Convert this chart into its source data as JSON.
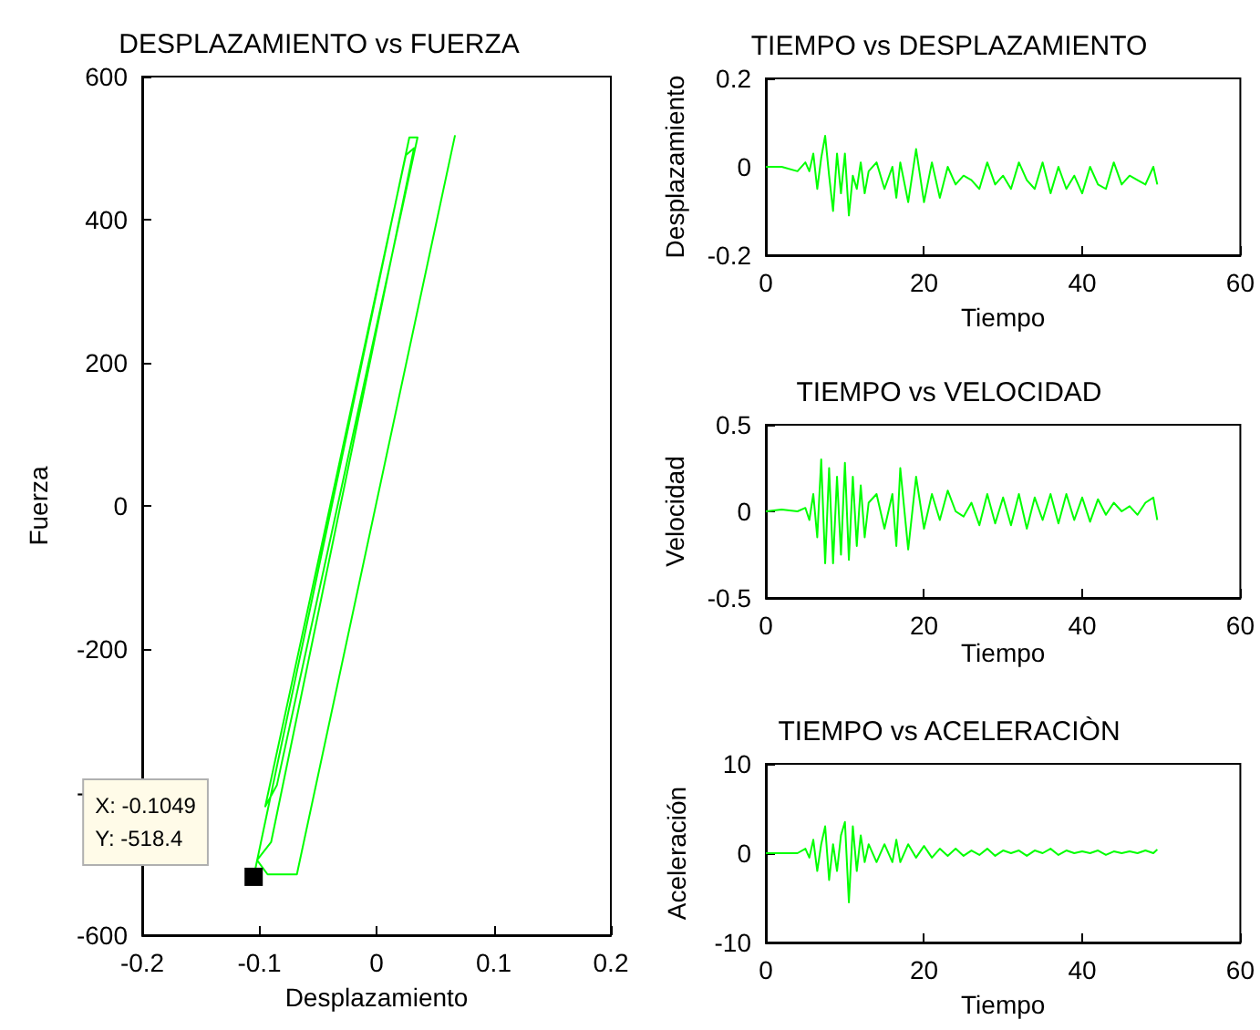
{
  "chart_data": [
    {
      "type": "line",
      "title": "DESPLAZAMIENTO vs FUERZA",
      "xlabel": "Desplazamiento",
      "ylabel": "Fuerza",
      "color": "#00ff00",
      "x": [
        -0.1049,
        0.028,
        0.035,
        -0.085,
        -0.095,
        0.025,
        0.032,
        -0.09,
        -0.102,
        -0.093,
        -0.068,
        0.067
      ],
      "values": [
        -518.4,
        515,
        515,
        -390,
        -420,
        490,
        500,
        -470,
        -495,
        -515,
        -515,
        518
      ],
      "xlim": [
        -0.2,
        0.2
      ],
      "xticks": [
        -0.2,
        -0.1,
        0,
        0.1,
        0.2
      ],
      "ylim": [
        -600,
        600
      ],
      "yticks": [
        -600,
        -400,
        -200,
        0,
        200,
        400,
        600
      ],
      "annotations": [
        {
          "text": "X: -0.1049\nY: -518.4",
          "x": -0.1049,
          "y": -518.4
        }
      ]
    },
    {
      "type": "line",
      "title": "TIEMPO vs DESPLAZAMIENTO",
      "xlabel": "Tiempo",
      "ylabel": "Desplazamiento",
      "color": "#00ff00",
      "x": [
        0,
        2,
        4,
        5,
        5.5,
        6,
        6.5,
        7,
        7.5,
        8,
        8.5,
        9,
        9.5,
        10,
        10.5,
        11,
        11.5,
        12,
        12.5,
        13,
        14,
        15,
        16,
        16.5,
        17,
        18,
        19,
        20,
        21,
        22,
        23,
        24,
        25,
        26,
        27,
        28,
        29,
        30,
        31,
        32,
        33,
        34,
        35,
        36,
        37,
        38,
        39,
        40,
        41,
        42,
        43,
        44,
        45,
        46,
        47,
        48,
        49,
        49.5
      ],
      "values": [
        0,
        0,
        -0.01,
        0.01,
        -0.01,
        0.03,
        -0.05,
        0.02,
        0.07,
        -0.02,
        -0.1,
        0.03,
        -0.06,
        0.03,
        -0.11,
        -0.02,
        -0.05,
        0.01,
        -0.06,
        -0.01,
        0.01,
        -0.05,
        0,
        -0.07,
        0.01,
        -0.08,
        0.04,
        -0.08,
        0.01,
        -0.07,
        0,
        -0.04,
        -0.02,
        -0.03,
        -0.05,
        0.01,
        -0.04,
        -0.02,
        -0.05,
        0.01,
        -0.03,
        -0.05,
        0.01,
        -0.06,
        0,
        -0.05,
        -0.02,
        -0.06,
        0,
        -0.04,
        -0.05,
        0.01,
        -0.04,
        -0.02,
        -0.03,
        -0.04,
        0,
        -0.04
      ],
      "xlim": [
        0,
        60
      ],
      "xticks": [
        0,
        20,
        40,
        60
      ],
      "ylim": [
        -0.2,
        0.2
      ],
      "yticks": [
        -0.2,
        0,
        0.2
      ]
    },
    {
      "type": "line",
      "title": "TIEMPO vs VELOCIDAD",
      "xlabel": "Tiempo",
      "ylabel": "Velocidad",
      "color": "#00ff00",
      "x": [
        0,
        2,
        4,
        5,
        5.5,
        6,
        6.5,
        7,
        7.5,
        8,
        8.5,
        9,
        9.5,
        10,
        10.5,
        11,
        11.5,
        12,
        12.5,
        13,
        14,
        15,
        16,
        16.5,
        17,
        18,
        19,
        20,
        21,
        22,
        23,
        24,
        25,
        26,
        27,
        28,
        29,
        30,
        31,
        32,
        33,
        34,
        35,
        36,
        37,
        38,
        39,
        40,
        41,
        42,
        43,
        44,
        45,
        46,
        47,
        48,
        49,
        49.5
      ],
      "values": [
        0,
        0.01,
        0,
        0.02,
        -0.05,
        0.1,
        -0.15,
        0.3,
        -0.3,
        0.25,
        -0.3,
        0.2,
        -0.25,
        0.28,
        -0.28,
        0.2,
        -0.2,
        0.15,
        -0.15,
        0.05,
        0.1,
        -0.1,
        0.1,
        -0.2,
        0.25,
        -0.22,
        0.2,
        -0.1,
        0.1,
        -0.05,
        0.12,
        0,
        -0.03,
        0.05,
        -0.08,
        0.1,
        -0.07,
        0.08,
        -0.08,
        0.1,
        -0.1,
        0.08,
        -0.05,
        0.1,
        -0.07,
        0.1,
        -0.05,
        0.08,
        -0.06,
        0.07,
        -0.02,
        0.05,
        0,
        0.03,
        -0.02,
        0.05,
        0.08,
        -0.05
      ],
      "xlim": [
        0,
        60
      ],
      "xticks": [
        0,
        20,
        40,
        60
      ],
      "ylim": [
        -0.5,
        0.5
      ],
      "yticks": [
        -0.5,
        0,
        0.5
      ]
    },
    {
      "type": "line",
      "title": "TIEMPO vs ACELERACIÒN",
      "xlabel": "Tiempo",
      "ylabel": "Aceleración",
      "color": "#00ff00",
      "x": [
        0,
        2,
        4,
        5,
        5.5,
        6,
        6.5,
        7,
        7.5,
        8,
        8.5,
        9,
        9.5,
        10,
        10.5,
        11,
        11.5,
        12,
        12.5,
        13,
        14,
        15,
        16,
        16.5,
        17,
        18,
        19,
        20,
        21,
        22,
        23,
        24,
        25,
        26,
        27,
        28,
        29,
        30,
        31,
        32,
        33,
        34,
        35,
        36,
        37,
        38,
        39,
        40,
        41,
        42,
        43,
        44,
        45,
        46,
        47,
        48,
        49,
        49.5
      ],
      "values": [
        0,
        0,
        0,
        0.5,
        -0.5,
        1.5,
        -2,
        1,
        3,
        -3,
        1,
        -2,
        2,
        3.5,
        -5.5,
        3,
        -2,
        2,
        -1,
        1,
        -1,
        1,
        -1,
        1.5,
        -1,
        1,
        -0.5,
        0.8,
        -0.5,
        0.5,
        -0.3,
        0.5,
        -0.3,
        0.3,
        -0.2,
        0.5,
        -0.3,
        0.3,
        0,
        0.3,
        -0.3,
        0.3,
        0,
        0.5,
        -0.2,
        0.3,
        0,
        0.2,
        0,
        0.3,
        -0.2,
        0.2,
        0,
        0.2,
        0,
        0.3,
        0,
        0.4
      ],
      "xlim": [
        0,
        60
      ],
      "xticks": [
        0,
        20,
        40,
        60
      ],
      "ylim": [
        -10,
        10
      ],
      "yticks": [
        -10,
        0,
        10
      ]
    }
  ]
}
